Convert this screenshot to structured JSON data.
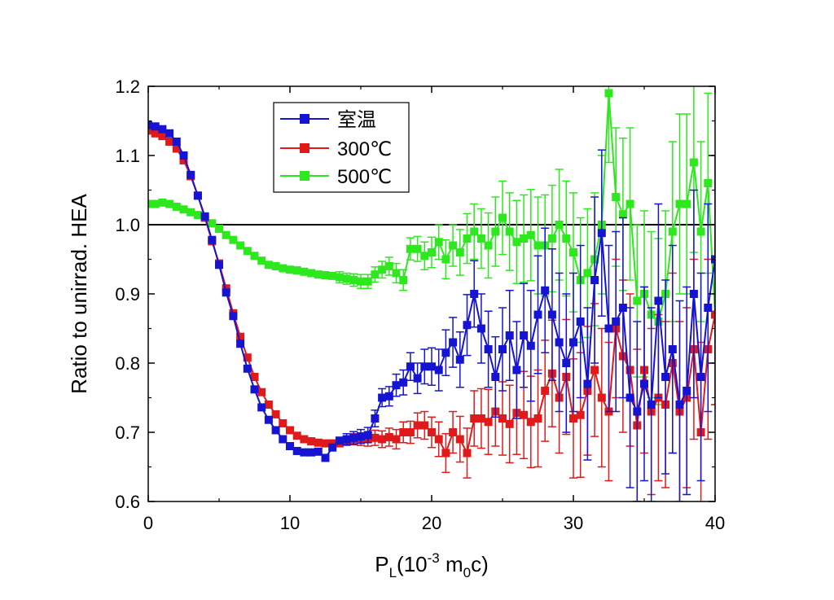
{
  "chart_data": {
    "type": "line",
    "title": "",
    "xlabel": "P",
    "xlabel_sub": "L",
    "xlabel_rest": "(10",
    "xlabel_sup": "-3",
    "xlabel_rest2": " m",
    "xlabel_sub2": "0",
    "xlabel_rest3": "c)",
    "ylabel": "Ratio to unirrad. HEA",
    "xlim": [
      0,
      40
    ],
    "ylim": [
      0.6,
      1.2
    ],
    "xticks": [
      "0",
      "10",
      "20",
      "30",
      "40"
    ],
    "yticks": [
      "0.6",
      "0.7",
      "0.8",
      "0.9",
      "1.0",
      "1.1",
      "1.2"
    ],
    "reference_line": 1.0,
    "legend_position": "top-left",
    "x": [
      0.0,
      0.5,
      1.0,
      1.5,
      2.0,
      2.5,
      3.0,
      3.5,
      4.0,
      4.5,
      5.0,
      5.5,
      6.0,
      6.5,
      7.0,
      7.5,
      8.0,
      8.5,
      9.0,
      9.5,
      10.0,
      10.5,
      11.0,
      11.5,
      12.0,
      12.5,
      13.0,
      13.5,
      14.0,
      14.5,
      15.0,
      15.5,
      16.0,
      16.5,
      17.0,
      17.5,
      18.0,
      18.5,
      19.0,
      19.5,
      20.0,
      20.5,
      21.0,
      21.5,
      22.0,
      22.5,
      23.0,
      23.5,
      24.0,
      24.5,
      25.0,
      25.5,
      26.0,
      26.5,
      27.0,
      27.5,
      28.0,
      28.5,
      29.0,
      29.5,
      30.0,
      30.5,
      31.0,
      31.5,
      32.0,
      32.5,
      33.0,
      33.5,
      34.0,
      34.5,
      35.0,
      35.5,
      36.0,
      36.5,
      37.0,
      37.5,
      38.0,
      38.5,
      39.0,
      39.5,
      40.0
    ],
    "series": [
      {
        "name": "室温",
        "color": "#1414d2",
        "values": [
          1.144,
          1.142,
          1.138,
          1.132,
          1.12,
          1.1,
          1.072,
          1.042,
          1.012,
          0.978,
          0.942,
          0.902,
          0.868,
          0.828,
          0.792,
          0.762,
          0.736,
          0.718,
          0.703,
          0.69,
          0.68,
          0.673,
          0.671,
          0.671,
          0.672,
          0.663,
          0.678,
          0.688,
          0.69,
          0.692,
          0.694,
          0.696,
          0.72,
          0.75,
          0.752,
          0.768,
          0.772,
          0.795,
          0.778,
          0.795,
          0.795,
          0.79,
          0.815,
          0.83,
          0.805,
          0.855,
          0.9,
          0.85,
          0.82,
          0.78,
          0.82,
          0.84,
          0.79,
          0.84,
          0.825,
          0.87,
          0.905,
          0.87,
          0.83,
          0.8,
          0.83,
          0.86,
          0.77,
          0.92,
          0.988,
          0.85,
          0.86,
          0.88,
          0.75,
          0.73,
          0.77,
          0.74,
          0.89,
          0.78,
          0.82,
          0.74,
          0.76,
          0.9,
          0.78,
          0.88,
          0.95
        ],
        "err": [
          0.004,
          0.004,
          0.004,
          0.004,
          0.004,
          0.004,
          0.004,
          0.004,
          0.004,
          0.004,
          0.004,
          0.004,
          0.004,
          0.004,
          0.004,
          0.004,
          0.004,
          0.004,
          0.004,
          0.004,
          0.004,
          0.004,
          0.004,
          0.005,
          0.005,
          0.006,
          0.006,
          0.007,
          0.008,
          0.009,
          0.01,
          0.011,
          0.012,
          0.013,
          0.014,
          0.016,
          0.018,
          0.02,
          0.022,
          0.025,
          0.027,
          0.03,
          0.033,
          0.036,
          0.04,
          0.044,
          0.048,
          0.05,
          0.055,
          0.058,
          0.06,
          0.065,
          0.07,
          0.075,
          0.08,
          0.085,
          0.09,
          0.095,
          0.1,
          0.1,
          0.1,
          0.11,
          0.11,
          0.12,
          0.12,
          0.12,
          0.13,
          0.13,
          0.13,
          0.13,
          0.14,
          0.14,
          0.14,
          0.14,
          0.15,
          0.15,
          0.15,
          0.15,
          0.15,
          0.15,
          0.15
        ]
      },
      {
        "name": "300℃",
        "color": "#e01a1a",
        "values": [
          1.136,
          1.132,
          1.128,
          1.12,
          1.11,
          1.093,
          1.07,
          1.042,
          1.01,
          0.976,
          0.944,
          0.908,
          0.872,
          0.838,
          0.808,
          0.78,
          0.758,
          0.74,
          0.726,
          0.713,
          0.703,
          0.695,
          0.69,
          0.687,
          0.685,
          0.684,
          0.684,
          0.684,
          0.686,
          0.69,
          0.69,
          0.69,
          0.692,
          0.69,
          0.693,
          0.69,
          0.7,
          0.7,
          0.71,
          0.71,
          0.7,
          0.69,
          0.67,
          0.7,
          0.69,
          0.67,
          0.72,
          0.72,
          0.715,
          0.73,
          0.72,
          0.712,
          0.728,
          0.725,
          0.715,
          0.72,
          0.76,
          0.785,
          0.75,
          0.78,
          0.72,
          0.725,
          0.76,
          0.79,
          0.75,
          0.73,
          0.85,
          0.81,
          0.79,
          0.71,
          0.79,
          0.73,
          0.75,
          0.74,
          0.8,
          0.73,
          0.75,
          0.82,
          0.7,
          0.82,
          0.87
        ],
        "err": [
          0.004,
          0.004,
          0.004,
          0.004,
          0.004,
          0.004,
          0.004,
          0.004,
          0.004,
          0.004,
          0.004,
          0.004,
          0.004,
          0.004,
          0.004,
          0.004,
          0.004,
          0.004,
          0.004,
          0.004,
          0.004,
          0.004,
          0.004,
          0.004,
          0.005,
          0.005,
          0.006,
          0.006,
          0.007,
          0.008,
          0.009,
          0.01,
          0.011,
          0.012,
          0.013,
          0.014,
          0.015,
          0.016,
          0.018,
          0.02,
          0.022,
          0.025,
          0.028,
          0.03,
          0.033,
          0.036,
          0.04,
          0.043,
          0.047,
          0.05,
          0.053,
          0.056,
          0.06,
          0.063,
          0.066,
          0.07,
          0.073,
          0.077,
          0.08,
          0.083,
          0.086,
          0.09,
          0.093,
          0.096,
          0.1,
          0.1,
          0.1,
          0.11,
          0.11,
          0.11,
          0.12,
          0.12,
          0.12,
          0.12,
          0.13,
          0.13,
          0.13,
          0.13,
          0.13,
          0.13,
          0.13
        ]
      },
      {
        "name": "500℃",
        "color": "#2ee81e",
        "values": [
          1.03,
          1.03,
          1.032,
          1.03,
          1.026,
          1.022,
          1.018,
          1.014,
          1.01,
          1.002,
          0.994,
          0.985,
          0.978,
          0.97,
          0.962,
          0.955,
          0.948,
          0.942,
          0.94,
          0.937,
          0.935,
          0.934,
          0.932,
          0.93,
          0.928,
          0.927,
          0.926,
          0.924,
          0.922,
          0.92,
          0.918,
          0.918,
          0.928,
          0.935,
          0.94,
          0.93,
          0.92,
          0.965,
          0.965,
          0.955,
          0.96,
          0.975,
          0.95,
          0.97,
          0.96,
          0.98,
          0.99,
          0.98,
          0.97,
          0.99,
          1.01,
          0.99,
          0.975,
          0.98,
          0.985,
          0.97,
          0.97,
          0.98,
          1.0,
          0.98,
          0.96,
          0.92,
          0.93,
          0.95,
          1.0,
          1.19,
          1.04,
          1.015,
          1.03,
          0.89,
          0.9,
          0.87,
          0.86,
          0.9,
          0.99,
          1.03,
          1.03,
          1.09,
          0.99,
          1.06,
          0.87
        ],
        "err": [
          0.003,
          0.003,
          0.003,
          0.003,
          0.003,
          0.003,
          0.003,
          0.003,
          0.003,
          0.003,
          0.003,
          0.003,
          0.003,
          0.003,
          0.003,
          0.004,
          0.004,
          0.004,
          0.004,
          0.005,
          0.005,
          0.005,
          0.005,
          0.006,
          0.006,
          0.007,
          0.007,
          0.008,
          0.008,
          0.009,
          0.01,
          0.01,
          0.011,
          0.012,
          0.013,
          0.014,
          0.015,
          0.016,
          0.018,
          0.02,
          0.022,
          0.025,
          0.028,
          0.03,
          0.033,
          0.036,
          0.04,
          0.043,
          0.047,
          0.05,
          0.053,
          0.056,
          0.06,
          0.063,
          0.066,
          0.07,
          0.073,
          0.077,
          0.08,
          0.083,
          0.086,
          0.09,
          0.093,
          0.096,
          0.1,
          0.1,
          0.1,
          0.11,
          0.11,
          0.11,
          0.12,
          0.12,
          0.12,
          0.12,
          0.13,
          0.13,
          0.13,
          0.13,
          0.13,
          0.13,
          0.13
        ]
      }
    ]
  }
}
